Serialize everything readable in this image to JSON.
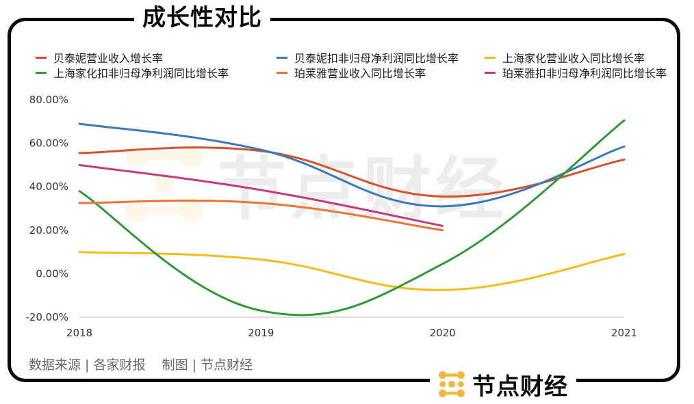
{
  "title": "成长性对比",
  "source_text": "数据来源 | 各家财报    制图 | 节点财经",
  "brand": "节点财经",
  "watermark": "节点财经",
  "colors": {
    "brand_orange": "#f5b73a",
    "frame": "#0a0a0a"
  },
  "chart_data": {
    "type": "line",
    "title": "",
    "xlabel": "",
    "ylabel": "",
    "x": [
      "2018",
      "2019",
      "2020",
      "2021"
    ],
    "ylim": [
      -20,
      80
    ],
    "yticks": [
      "-20.00%",
      "0.00%",
      "20.00%",
      "40.00%",
      "60.00%",
      "80.00%"
    ],
    "smooth": true,
    "legend_position": "top",
    "grid": false,
    "series": [
      {
        "name": "贝泰妮营业收入增长率",
        "color": "#d9502a",
        "values": [
          55.5,
          56.5,
          35.5,
          52.5
        ]
      },
      {
        "name": "贝泰妮扣非归母净利润同比增长率",
        "color": "#3b7ab8",
        "values": [
          69.0,
          57.0,
          31.0,
          58.5
        ]
      },
      {
        "name": "上海家化营业收入同比增长率",
        "color": "#f2bc1b",
        "values": [
          10.0,
          6.5,
          -7.5,
          9.0
        ]
      },
      {
        "name": "上海家化扣非归母净利润同比增长率",
        "color": "#2e9a35",
        "values": [
          38.0,
          -17.0,
          4.5,
          70.5
        ]
      },
      {
        "name": "珀莱雅营业收入同比增长率",
        "color": "#ec7430",
        "values": [
          32.5,
          32.5,
          20.0,
          null
        ]
      },
      {
        "name": "珀莱雅扣非归母净利润同比增长率",
        "color": "#c53a7a",
        "values": [
          50.0,
          38.5,
          22.0,
          null
        ]
      }
    ]
  }
}
